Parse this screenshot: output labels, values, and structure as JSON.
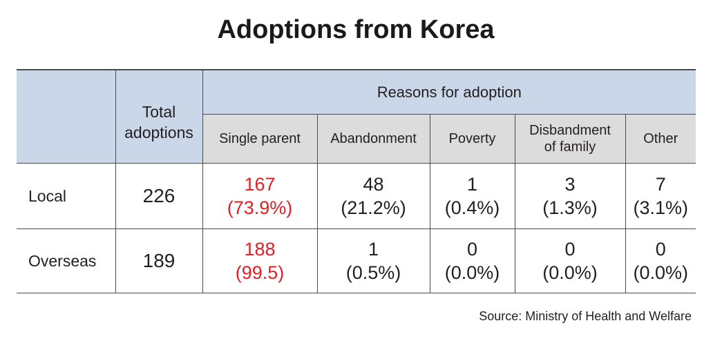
{
  "title": "Adoptions from Korea",
  "source": "Source: Ministry of Health and Welfare",
  "colors": {
    "header_blue": "#c9d7e8",
    "header_gray": "#dcdcdc",
    "highlight_red": "#e31e24"
  },
  "chart_data": {
    "type": "table",
    "title": "Adoptions from Korea",
    "headers": {
      "total": "Total adoptions",
      "group": "Reasons for adoption",
      "reasons": [
        "Single parent",
        "Abandonment",
        "Poverty",
        "Disbandment of family",
        "Other"
      ]
    },
    "rows": [
      {
        "label": "Local",
        "total": "226",
        "cells": [
          {
            "count": "167",
            "pct": "(73.9%)"
          },
          {
            "count": "48",
            "pct": "(21.2%)"
          },
          {
            "count": "1",
            "pct": "(0.4%)"
          },
          {
            "count": "3",
            "pct": "(1.3%)"
          },
          {
            "count": "7",
            "pct": "(3.1%)"
          }
        ]
      },
      {
        "label": "Overseas",
        "total": "189",
        "cells": [
          {
            "count": "188",
            "pct": "(99.5)"
          },
          {
            "count": "1",
            "pct": "(0.5%)"
          },
          {
            "count": "0",
            "pct": "(0.0%)"
          },
          {
            "count": "0",
            "pct": "(0.0%)"
          },
          {
            "count": "0",
            "pct": "(0.0%)"
          }
        ]
      }
    ],
    "highlight_column": "Single parent"
  }
}
